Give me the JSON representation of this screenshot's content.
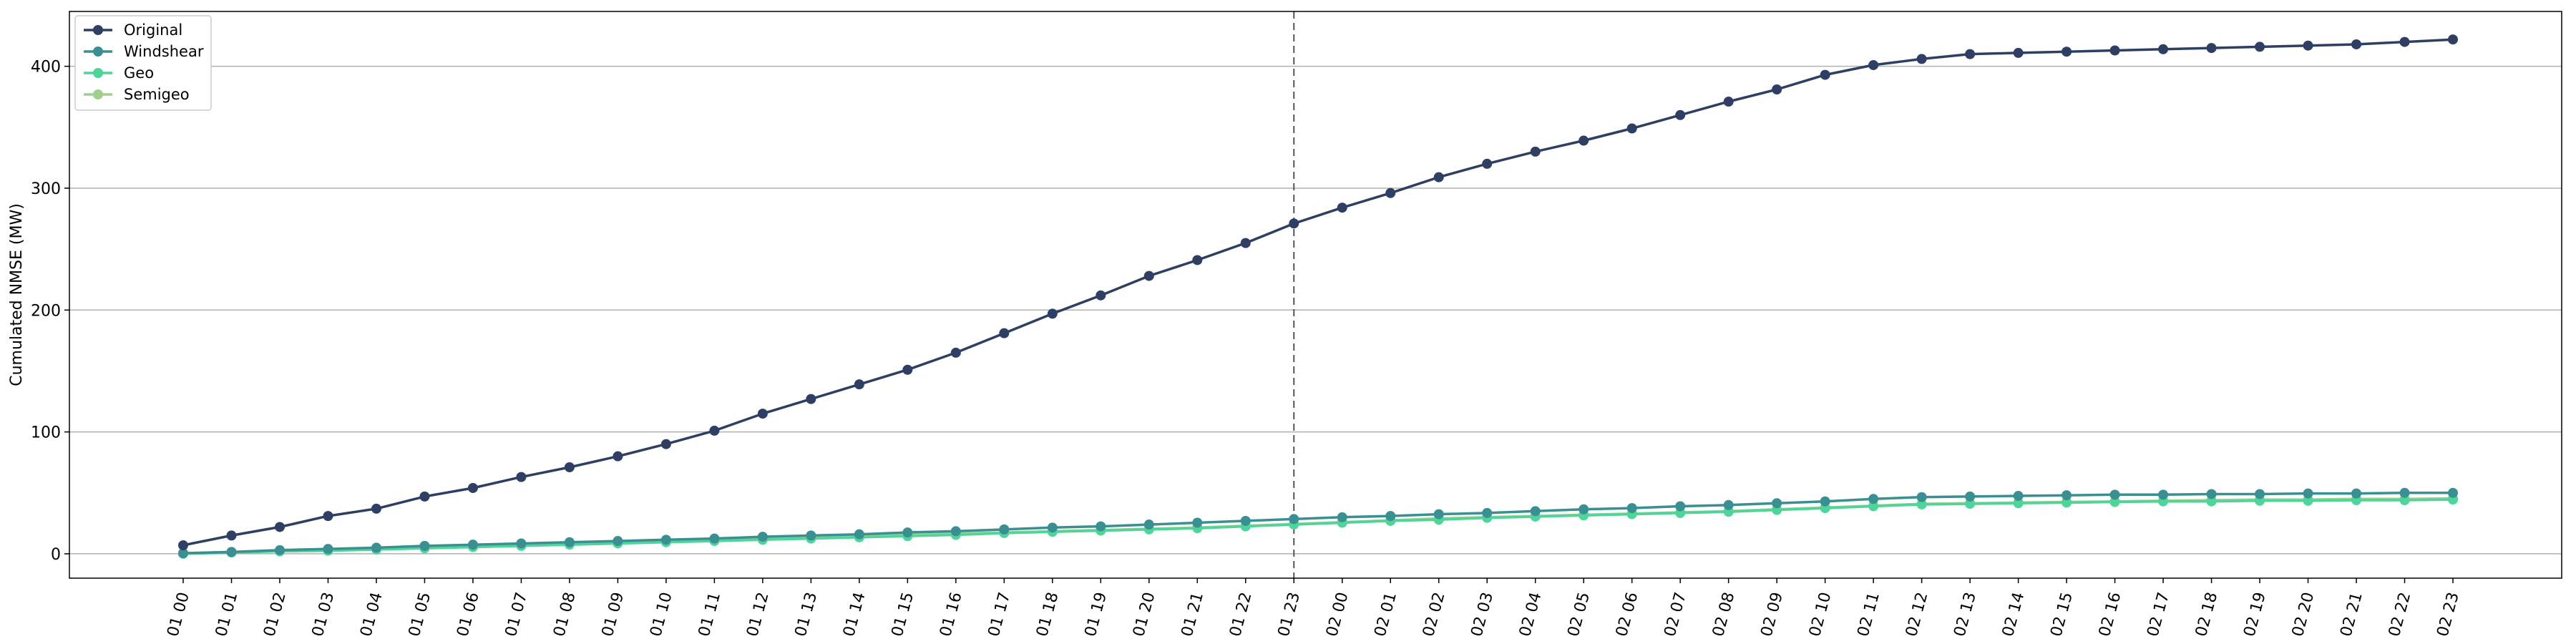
{
  "chart_data": {
    "type": "line",
    "title": "",
    "xlabel": "",
    "ylabel": "Cumulated NMSE (MW)",
    "ylim": [
      -20,
      445
    ],
    "yticks": [
      0,
      100,
      200,
      300,
      400
    ],
    "grid": "horizontal",
    "legend_position": "top-left",
    "vline_category": "01 23",
    "categories": [
      "01 00",
      "01 01",
      "01 02",
      "01 03",
      "01 04",
      "01 05",
      "01 06",
      "01 07",
      "01 08",
      "01 09",
      "01 10",
      "01 11",
      "01 12",
      "01 13",
      "01 14",
      "01 15",
      "01 16",
      "01 17",
      "01 18",
      "01 19",
      "01 20",
      "01 21",
      "01 22",
      "01 23",
      "02 00",
      "02 01",
      "02 02",
      "02 03",
      "02 04",
      "02 05",
      "02 06",
      "02 07",
      "02 08",
      "02 09",
      "02 10",
      "02 11",
      "02 12",
      "02 13",
      "02 14",
      "02 15",
      "02 16",
      "02 17",
      "02 18",
      "02 19",
      "02 20",
      "02 21",
      "02 22",
      "02 23"
    ],
    "series": [
      {
        "name": "Original",
        "color": "#2e3f63",
        "values": [
          7,
          15,
          22,
          31,
          37,
          47,
          54,
          63,
          71,
          80,
          90,
          101,
          115,
          127,
          139,
          151,
          165,
          181,
          197,
          212,
          228,
          241,
          255,
          271,
          284,
          296,
          309,
          320,
          330,
          339,
          349,
          360,
          371,
          381,
          393,
          401,
          406,
          410,
          411,
          412,
          413,
          414,
          415,
          416,
          417,
          418,
          420,
          422
        ]
      },
      {
        "name": "Windshear",
        "color": "#3a8f93",
        "values": [
          0.5,
          1.5,
          3,
          4,
          5,
          6.5,
          7.5,
          8.5,
          9.5,
          10.5,
          11.5,
          12.5,
          14,
          15,
          16,
          17.5,
          18.5,
          20,
          21.5,
          22.5,
          24,
          25.5,
          27,
          28.5,
          30,
          31,
          32.5,
          33.5,
          35,
          36.5,
          37.5,
          39,
          40,
          41.5,
          43,
          45,
          46.5,
          47,
          47.5,
          48,
          48.5,
          48.5,
          49,
          49,
          49.5,
          49.5,
          50,
          50
        ]
      },
      {
        "name": "Geo",
        "color": "#4fd49a",
        "values": [
          0,
          1,
          2,
          2.5,
          3.5,
          4.5,
          5.5,
          6.5,
          7.5,
          8.5,
          9.5,
          10.5,
          11.5,
          12.5,
          13.5,
          14.5,
          15.5,
          17,
          18,
          19,
          20,
          21,
          22.5,
          24,
          25.5,
          27,
          28,
          29.5,
          30.5,
          31.5,
          32.5,
          33.5,
          34.5,
          36,
          37.5,
          39,
          40.5,
          41,
          41.5,
          42,
          42.5,
          43,
          43,
          43.5,
          43.5,
          44,
          44,
          44.5
        ]
      },
      {
        "name": "Semigeo",
        "color": "#9fd08e",
        "values": [
          0.5,
          1.5,
          2.5,
          3.5,
          4.5,
          5.5,
          6.5,
          7.5,
          8.5,
          9.5,
          10.5,
          11.5,
          12.5,
          13.5,
          14.5,
          15.5,
          16.5,
          17.5,
          18.5,
          19.5,
          20.5,
          21.5,
          23,
          24.5,
          26,
          27.5,
          29,
          30,
          31,
          32,
          33,
          34,
          35,
          36.5,
          38,
          39.5,
          41,
          41.5,
          42,
          42.5,
          43,
          43.5,
          44,
          44.5,
          44.5,
          45,
          45,
          45.5
        ]
      }
    ]
  }
}
